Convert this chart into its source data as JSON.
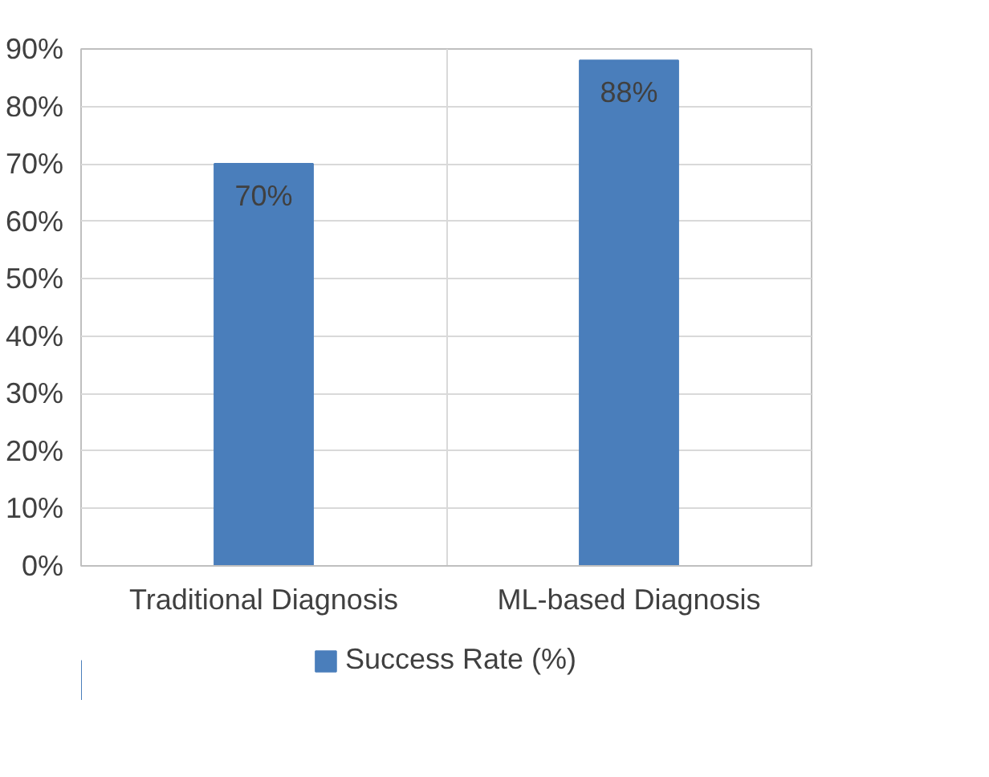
{
  "chart_data": {
    "type": "bar",
    "categories": [
      "Traditional Diagnosis",
      "ML-based Diagnosis"
    ],
    "series": [
      {
        "name": "Success Rate (%)",
        "color": "#4a7ebb",
        "values": [
          70,
          88
        ]
      }
    ],
    "value_labels": [
      "70%",
      "88%"
    ],
    "ylim": [
      0,
      90
    ],
    "yticks": [
      {
        "value": 0,
        "label": "0%"
      },
      {
        "value": 10,
        "label": "10%"
      },
      {
        "value": 20,
        "label": "20%"
      },
      {
        "value": 30,
        "label": "30%"
      },
      {
        "value": 40,
        "label": "40%"
      },
      {
        "value": 50,
        "label": "50%"
      },
      {
        "value": 60,
        "label": "60%"
      },
      {
        "value": 70,
        "label": "70%"
      },
      {
        "value": 80,
        "label": "80%"
      },
      {
        "value": 90,
        "label": "90%"
      }
    ],
    "grid": true,
    "legend": "bottom"
  }
}
